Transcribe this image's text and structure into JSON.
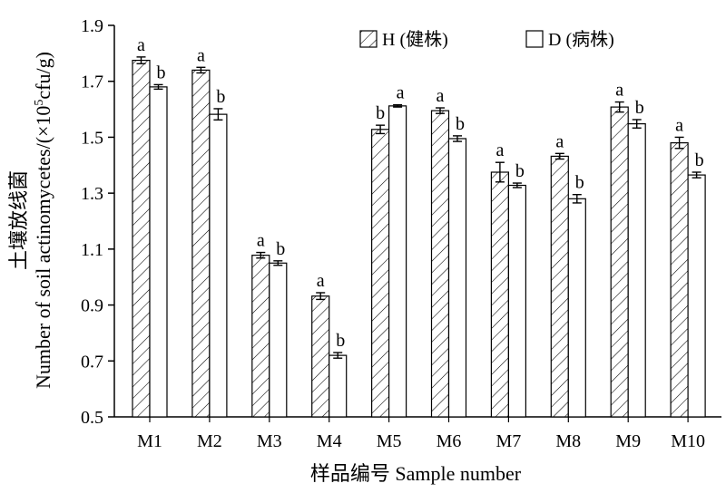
{
  "chart_data": {
    "type": "bar",
    "xlabel": "样品编号 Sample number",
    "ylabel_lines": [
      "土壤放线菌",
      "Number of soil actinomycetes/(×10",
      "5",
      "cfu/g)"
    ],
    "categories": [
      "M1",
      "M2",
      "M3",
      "M4",
      "M5",
      "M6",
      "M7",
      "M8",
      "M9",
      "M10"
    ],
    "ylim": [
      0.5,
      1.9
    ],
    "yticks": [
      "0.5",
      "0.7",
      "0.9",
      "1.1",
      "1.3",
      "1.5",
      "1.7",
      "1.9"
    ],
    "grid": false,
    "legend_position": "top-right",
    "series": [
      {
        "name": "H (健株)",
        "pattern": "diagonal-hatch",
        "values": [
          1.775,
          1.74,
          1.078,
          0.932,
          1.528,
          1.595,
          1.375,
          1.432,
          1.608,
          1.48
        ],
        "errors": [
          0.012,
          0.01,
          0.01,
          0.012,
          0.015,
          0.01,
          0.035,
          0.01,
          0.018,
          0.02
        ],
        "labels": [
          "a",
          "a",
          "a",
          "a",
          "b",
          "a",
          "a",
          "a",
          "a",
          "a"
        ]
      },
      {
        "name": "D (病株)",
        "pattern": "solid-white",
        "values": [
          1.68,
          1.582,
          1.05,
          0.72,
          1.612,
          1.495,
          1.328,
          1.28,
          1.548,
          1.365
        ],
        "errors": [
          0.008,
          0.02,
          0.008,
          0.01,
          0.004,
          0.01,
          0.008,
          0.015,
          0.015,
          0.01
        ],
        "labels": [
          "b",
          "b",
          "b",
          "b",
          "a",
          "b",
          "b",
          "b",
          "b",
          "b"
        ]
      }
    ]
  }
}
